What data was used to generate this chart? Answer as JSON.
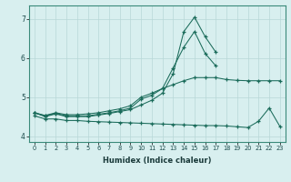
{
  "xlabel": "Humidex (Indice chaleur)",
  "bg_color": "#d8efef",
  "grid_color": "#b8d8d8",
  "line_color": "#1a6b5a",
  "ylim": [
    3.85,
    7.35
  ],
  "xlim": [
    -0.5,
    23.5
  ],
  "yticks": [
    4,
    5,
    6,
    7
  ],
  "xticks": [
    0,
    1,
    2,
    3,
    4,
    5,
    6,
    7,
    8,
    9,
    10,
    11,
    12,
    13,
    14,
    15,
    16,
    17,
    18,
    19,
    20,
    21,
    22,
    23
  ],
  "line1_x": [
    0,
    1,
    2,
    3,
    4,
    5,
    6,
    7,
    8,
    9,
    10,
    11,
    12,
    13,
    14,
    15,
    16,
    17,
    18,
    19,
    20,
    21,
    22,
    23
  ],
  "line1_y": [
    4.6,
    4.53,
    4.6,
    4.55,
    4.55,
    4.57,
    4.6,
    4.65,
    4.7,
    4.78,
    5.0,
    5.1,
    5.22,
    5.32,
    5.42,
    5.5,
    5.5,
    5.5,
    5.45,
    5.43,
    5.42,
    5.42,
    5.42,
    5.42
  ],
  "line2_x": [
    0,
    1,
    2,
    3,
    4,
    5,
    6,
    7,
    8,
    9,
    10,
    11,
    12,
    13,
    14,
    15,
    16,
    17
  ],
  "line2_y": [
    4.6,
    4.52,
    4.58,
    4.52,
    4.52,
    4.52,
    4.56,
    4.6,
    4.65,
    4.72,
    4.95,
    5.05,
    5.22,
    5.75,
    6.28,
    6.68,
    6.12,
    5.8
  ],
  "line3_x": [
    0,
    1,
    2,
    3,
    4,
    5,
    6,
    7,
    8,
    9,
    10,
    11,
    12,
    13,
    14,
    15,
    16,
    17
  ],
  "line3_y": [
    4.6,
    4.5,
    4.57,
    4.5,
    4.5,
    4.5,
    4.54,
    4.58,
    4.63,
    4.68,
    4.8,
    4.92,
    5.1,
    5.6,
    6.68,
    7.05,
    6.55,
    6.15
  ],
  "line4_x": [
    0,
    1,
    2,
    3,
    4,
    5,
    6,
    7,
    8,
    9,
    10,
    11,
    12,
    13,
    14,
    15,
    16,
    17,
    18,
    19,
    20,
    21,
    22,
    23
  ],
  "line4_y": [
    4.52,
    4.44,
    4.44,
    4.4,
    4.4,
    4.38,
    4.37,
    4.36,
    4.35,
    4.34,
    4.33,
    4.32,
    4.31,
    4.3,
    4.29,
    4.28,
    4.27,
    4.27,
    4.26,
    4.24,
    4.22,
    4.38,
    4.72,
    4.25
  ]
}
